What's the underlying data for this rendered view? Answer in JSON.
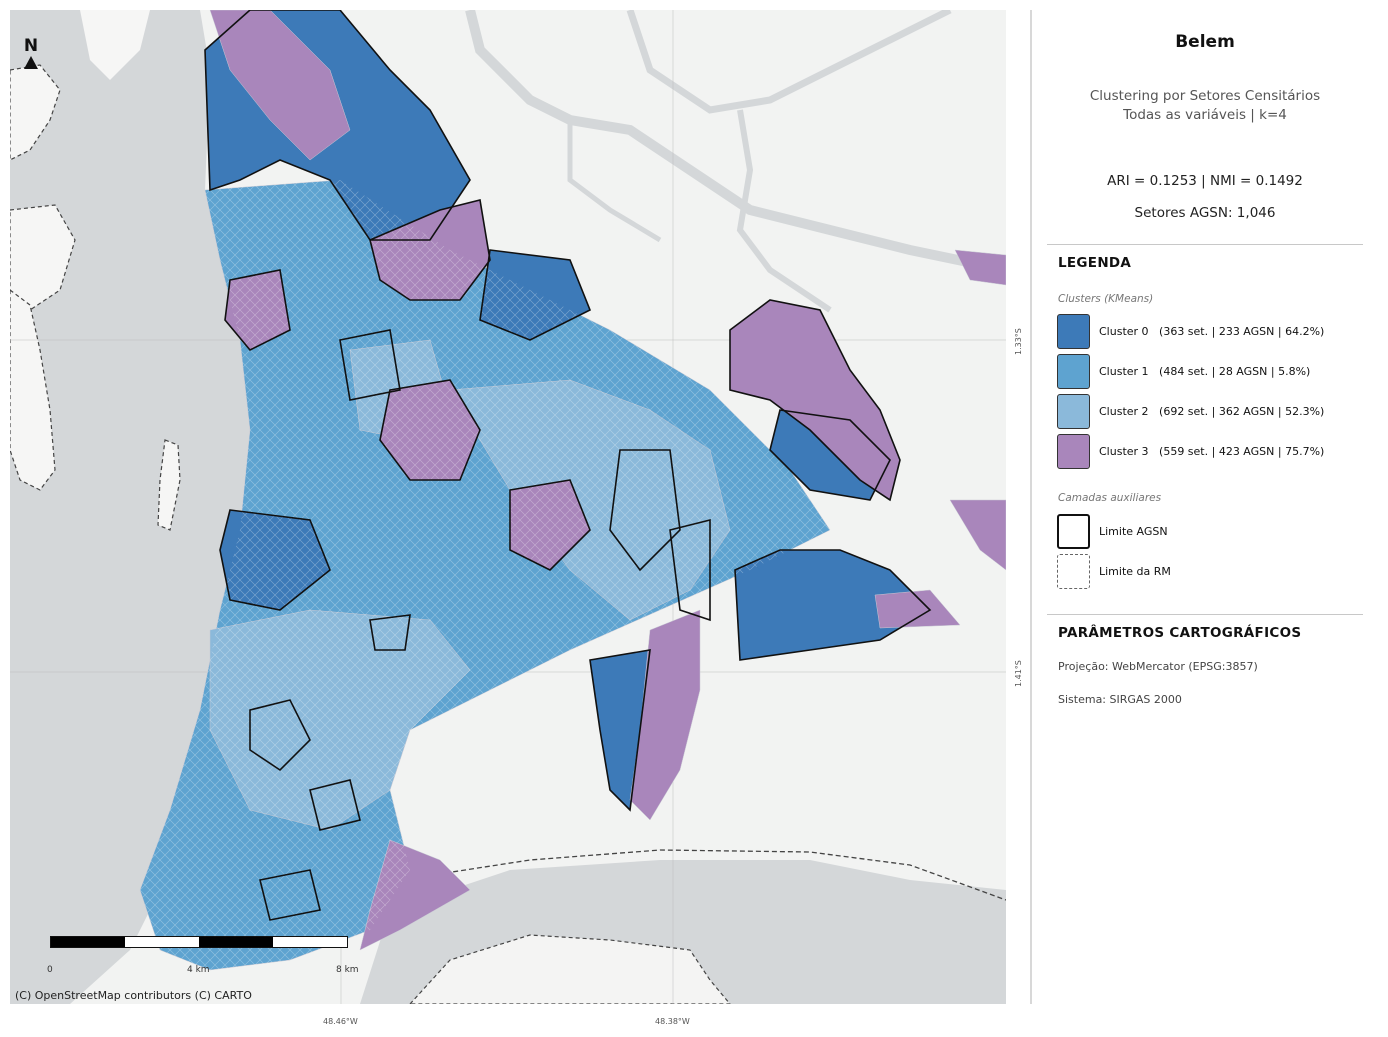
{
  "map": {
    "attribution": "(C) OpenStreetMap contributors (C) CARTO",
    "north_label": "N",
    "north_icon": "north-arrow-icon",
    "scalebar": {
      "labels": [
        "0",
        "4 km",
        "8 km"
      ]
    },
    "x_ticks": [
      "48.46°W",
      "48.38°W"
    ],
    "y_ticks": [
      "1.33°S",
      "1.41°S"
    ],
    "colors": {
      "water": "#d4d7d9",
      "land": "#f2f3f2",
      "cluster_0": "#3d7ab8",
      "cluster_1": "#5ea3d0",
      "cluster_2": "#8bb9da",
      "cluster_3": "#a986bb"
    }
  },
  "panel": {
    "title": "Belem",
    "subtitle_1": "Clustering por Setores Censitários",
    "subtitle_2": "Todas as variáveis | k=4",
    "metrics": "ARI = 0.1253   |   NMI = 0.1492",
    "setores": "Setores AGSN: 1,046",
    "legend_title": "LEGENDA",
    "clusters_header": "Clusters (KMeans)",
    "clusters": [
      {
        "label": "Cluster 0   (363 set. | 233 AGSN | 64.2%)",
        "color": "#3d7ab8"
      },
      {
        "label": "Cluster 1   (484 set. | 28 AGSN | 5.8%)",
        "color": "#5ea3d0"
      },
      {
        "label": "Cluster 2   (692 set. | 362 AGSN | 52.3%)",
        "color": "#8bb9da"
      },
      {
        "label": "Cluster 3   (559 set. | 423 AGSN | 75.7%)",
        "color": "#a986bb"
      }
    ],
    "aux_header": "Camadas auxiliares",
    "aux": [
      {
        "label": "Limite AGSN"
      },
      {
        "label": "Limite da RM"
      }
    ],
    "params_title": "PARÂMETROS CARTOGRÁFICOS",
    "projection": "Projeção: WebMercator (EPSG:3857)",
    "system": "Sistema: SIRGAS 2000"
  }
}
